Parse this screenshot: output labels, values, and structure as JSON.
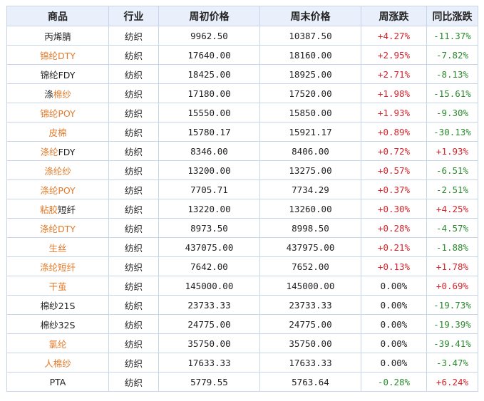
{
  "table": {
    "headers": [
      "商品",
      "行业",
      "周初价格",
      "周末价格",
      "周涨跌",
      "同比涨跌"
    ],
    "rows": [
      {
        "name": [
          {
            "t": "丙烯腈",
            "link": false
          }
        ],
        "industry": "纺织",
        "open": "9962.50",
        "close": "10387.50",
        "week": "+4.27%",
        "yoy": "-11.37%"
      },
      {
        "name": [
          {
            "t": "锦纶DTY",
            "link": true
          }
        ],
        "industry": "纺织",
        "open": "17640.00",
        "close": "18160.00",
        "week": "+2.95%",
        "yoy": "-7.82%"
      },
      {
        "name": [
          {
            "t": "锦纶FDY",
            "link": false
          }
        ],
        "industry": "纺织",
        "open": "18425.00",
        "close": "18925.00",
        "week": "+2.71%",
        "yoy": "-8.13%"
      },
      {
        "name": [
          {
            "t": "涤",
            "link": false
          },
          {
            "t": "棉纱",
            "link": true
          }
        ],
        "industry": "纺织",
        "open": "17180.00",
        "close": "17520.00",
        "week": "+1.98%",
        "yoy": "-15.61%"
      },
      {
        "name": [
          {
            "t": "锦纶POY",
            "link": true
          }
        ],
        "industry": "纺织",
        "open": "15550.00",
        "close": "15850.00",
        "week": "+1.93%",
        "yoy": "-9.30%"
      },
      {
        "name": [
          {
            "t": "皮棉",
            "link": true
          }
        ],
        "industry": "纺织",
        "open": "15780.17",
        "close": "15921.17",
        "week": "+0.89%",
        "yoy": "-30.13%"
      },
      {
        "name": [
          {
            "t": "涤纶",
            "link": true
          },
          {
            "t": "FDY",
            "link": false
          }
        ],
        "industry": "纺织",
        "open": "8346.00",
        "close": "8406.00",
        "week": "+0.72%",
        "yoy": "+1.93%"
      },
      {
        "name": [
          {
            "t": "涤纶纱",
            "link": true
          }
        ],
        "industry": "纺织",
        "open": "13200.00",
        "close": "13275.00",
        "week": "+0.57%",
        "yoy": "-6.51%"
      },
      {
        "name": [
          {
            "t": "涤纶POY",
            "link": true
          }
        ],
        "industry": "纺织",
        "open": "7705.71",
        "close": "7734.29",
        "week": "+0.37%",
        "yoy": "-2.51%"
      },
      {
        "name": [
          {
            "t": "粘胶",
            "link": true
          },
          {
            "t": "短纤",
            "link": false
          }
        ],
        "industry": "纺织",
        "open": "13220.00",
        "close": "13260.00",
        "week": "+0.30%",
        "yoy": "+4.25%"
      },
      {
        "name": [
          {
            "t": "涤纶DTY",
            "link": true
          }
        ],
        "industry": "纺织",
        "open": "8973.50",
        "close": "8998.50",
        "week": "+0.28%",
        "yoy": "-4.57%"
      },
      {
        "name": [
          {
            "t": "生丝",
            "link": true
          }
        ],
        "industry": "纺织",
        "open": "437075.00",
        "close": "437975.00",
        "week": "+0.21%",
        "yoy": "-1.88%"
      },
      {
        "name": [
          {
            "t": "涤纶短纤",
            "link": true
          }
        ],
        "industry": "纺织",
        "open": "7642.00",
        "close": "7652.00",
        "week": "+0.13%",
        "yoy": "+1.78%"
      },
      {
        "name": [
          {
            "t": "干茧",
            "link": true
          }
        ],
        "industry": "纺织",
        "open": "145000.00",
        "close": "145000.00",
        "week": "0.00%",
        "yoy": "+0.69%"
      },
      {
        "name": [
          {
            "t": "棉纱21S",
            "link": false
          }
        ],
        "industry": "纺织",
        "open": "23733.33",
        "close": "23733.33",
        "week": "0.00%",
        "yoy": "-19.73%"
      },
      {
        "name": [
          {
            "t": "棉纱32S",
            "link": false
          }
        ],
        "industry": "纺织",
        "open": "24775.00",
        "close": "24775.00",
        "week": "0.00%",
        "yoy": "-19.39%"
      },
      {
        "name": [
          {
            "t": "氯纶",
            "link": true
          }
        ],
        "industry": "纺织",
        "open": "35750.00",
        "close": "35750.00",
        "week": "0.00%",
        "yoy": "-39.41%"
      },
      {
        "name": [
          {
            "t": "人棉纱",
            "link": true
          }
        ],
        "industry": "纺织",
        "open": "17633.33",
        "close": "17633.33",
        "week": "0.00%",
        "yoy": "-3.47%"
      },
      {
        "name": [
          {
            "t": "PTA",
            "link": false
          }
        ],
        "industry": "纺织",
        "open": "5779.55",
        "close": "5763.64",
        "week": "-0.28%",
        "yoy": "+6.24%"
      }
    ]
  },
  "colors": {
    "up": "#d8232a",
    "down": "#2b8a2e",
    "link": "#e37a29",
    "header_bg": "#eaf0fb",
    "border": "#c8d4e8"
  }
}
